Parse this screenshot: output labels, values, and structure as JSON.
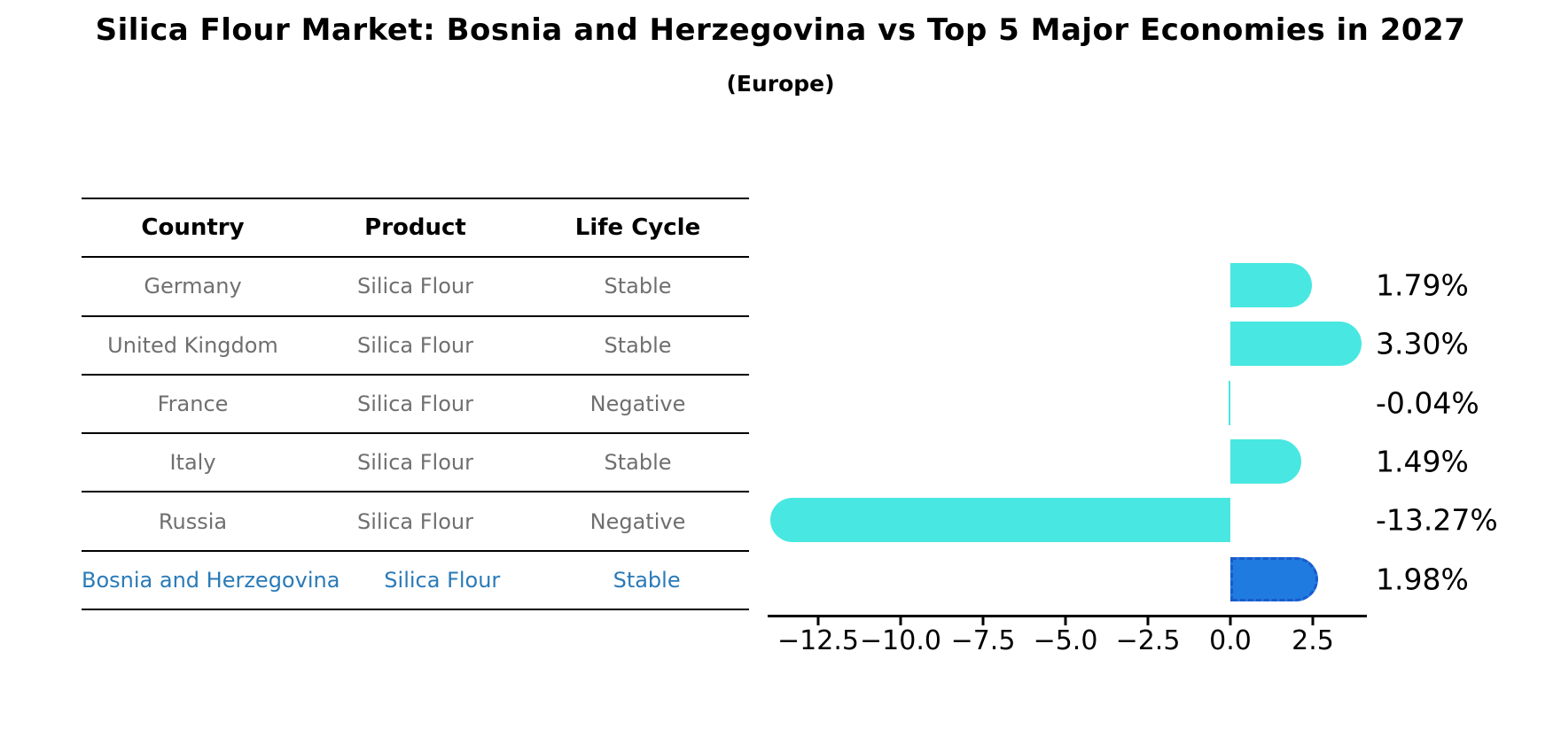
{
  "header": {
    "title": "Silica Flour Market: Bosnia and Herzegovina vs Top 5 Major Economies in 2027",
    "subtitle": "(Europe)"
  },
  "table": {
    "headers": [
      "Country",
      "Product",
      "Life Cycle"
    ],
    "rows": [
      {
        "country": "Germany",
        "product": "Silica Flour",
        "life_cycle": "Stable",
        "highlighted": false
      },
      {
        "country": "United Kingdom",
        "product": "Silica Flour",
        "life_cycle": "Stable",
        "highlighted": false
      },
      {
        "country": "France",
        "product": "Silica Flour",
        "life_cycle": "Negative",
        "highlighted": false
      },
      {
        "country": "Italy",
        "product": "Silica Flour",
        "life_cycle": "Stable",
        "highlighted": false
      },
      {
        "country": "Russia",
        "product": "Silica Flour",
        "life_cycle": "Negative",
        "highlighted": false
      },
      {
        "country": "Bosnia and Herzegovina",
        "product": "Silica Flour",
        "life_cycle": "Stable",
        "highlighted": true
      }
    ],
    "text_color": "#6F6F6F",
    "highlight_text_color": "#2A7AB8"
  },
  "chart_data": {
    "type": "bar",
    "orientation": "horizontal",
    "title": "Silica Flour Market: Bosnia and Herzegovina vs Top 5 Major Economies in 2027 (Europe)",
    "categories": [
      "Germany",
      "United Kingdom",
      "France",
      "Italy",
      "Russia",
      "Bosnia and Herzegovina"
    ],
    "values": [
      1.79,
      3.3,
      -0.04,
      1.49,
      -13.27,
      1.98
    ],
    "value_labels": [
      "1.79%",
      "3.30%",
      "-0.04%",
      "1.49%",
      "-13.27%",
      "1.98%"
    ],
    "x_tick_labels": [
      "−12.5",
      "−10.0",
      "−7.5",
      "−5.0",
      "−2.5",
      "0.0",
      "2.5"
    ],
    "x_tick_values": [
      -12.5,
      -10.0,
      -7.5,
      -5.0,
      -2.5,
      0.0,
      2.5
    ],
    "xlim": [
      -14.05,
      4.15
    ],
    "grid": false,
    "bar_color": "#48E7E1",
    "highlight_bar_color": "#1F7BE0",
    "highlight_bar_border_color": "#1A5ACC",
    "highlight_index": 5
  }
}
